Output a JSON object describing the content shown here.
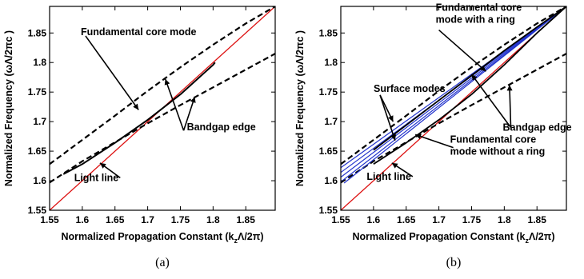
{
  "chart_data": [
    {
      "type": "line",
      "caption": "(a)",
      "xlabel": "Normalized Propagation Constant (k₂Λ/2π)",
      "xlabel_parts": [
        "Normalized Propagation Constant (k",
        "z",
        "Λ/2π)"
      ],
      "ylabel": "Normalized Frequency (ωΛ/2πc )",
      "xlim": [
        1.55,
        1.895
      ],
      "ylim": [
        1.55,
        1.895
      ],
      "xticks": [
        "1.55",
        "1.6",
        "1.65",
        "1.7",
        "1.75",
        "1.8",
        "1.85"
      ],
      "yticks": [
        "1.55",
        "1.6",
        "1.65",
        "1.7",
        "1.75",
        "1.8",
        "1.85"
      ],
      "grid": false,
      "series": [
        {
          "key": "light",
          "color": "#dd1111",
          "style": "solid",
          "width": 1.3,
          "x": [
            1.55,
            1.895
          ],
          "y": [
            1.55,
            1.895
          ]
        },
        {
          "key": "upper-edge",
          "color": "#000000",
          "style": "dashed",
          "width": 2.2,
          "x": [
            1.55,
            1.6,
            1.65,
            1.7,
            1.75,
            1.8,
            1.85,
            1.895
          ],
          "y": [
            1.628,
            1.669,
            1.71,
            1.752,
            1.792,
            1.83,
            1.866,
            1.895
          ]
        },
        {
          "key": "lower-edge",
          "color": "#000000",
          "style": "dashed",
          "width": 2.2,
          "x": [
            1.55,
            1.6,
            1.65,
            1.7,
            1.75,
            1.8,
            1.85,
            1.895
          ],
          "y": [
            1.597,
            1.633,
            1.665,
            1.697,
            1.728,
            1.758,
            1.788,
            1.815
          ]
        },
        {
          "key": "core-mode",
          "color": "#000000",
          "style": "solid",
          "width": 2.0,
          "x": [
            1.571,
            1.6,
            1.65,
            1.7,
            1.75,
            1.8,
            1.803
          ],
          "y": [
            1.611,
            1.628,
            1.664,
            1.703,
            1.746,
            1.796,
            1.8
          ]
        }
      ],
      "annotations": [
        {
          "text": "Fundamental core mode",
          "from": [
            1.605,
            1.845
          ],
          "to": [
            1.686,
            1.72
          ]
        },
        {
          "text": "Bandgap edge",
          "from": [
            1.755,
            1.685
          ],
          "to": [
            1.727,
            1.772
          ]
        },
        {
          "text": "Bandgap edge",
          "from": [
            1.755,
            1.685
          ],
          "to": [
            1.772,
            1.742
          ]
        },
        {
          "text": "Light line",
          "from": [
            1.658,
            1.605
          ],
          "to": [
            1.627,
            1.63
          ]
        }
      ]
    },
    {
      "type": "line",
      "caption": "(b)",
      "xlabel": "Normalized Propagation Constant (k₂Λ/2π)",
      "xlabel_parts": [
        "Normalized Propagation Constant (k",
        "z",
        "Λ/2π)"
      ],
      "ylabel": "Normalized Frequency (ωΛ/2πc )",
      "xlim": [
        1.55,
        1.895
      ],
      "ylim": [
        1.55,
        1.895
      ],
      "xticks": [
        "1.55",
        "1.6",
        "1.65",
        "1.7",
        "1.75",
        "1.8",
        "1.85"
      ],
      "yticks": [
        "1.55",
        "1.6",
        "1.65",
        "1.7",
        "1.75",
        "1.8",
        "1.85"
      ],
      "grid": false,
      "series": [
        {
          "key": "light",
          "color": "#dd1111",
          "style": "solid",
          "width": 1.3,
          "x": [
            1.55,
            1.895
          ],
          "y": [
            1.55,
            1.895
          ]
        },
        {
          "key": "upper-edge",
          "color": "#000000",
          "style": "dashed",
          "width": 2.2,
          "x": [
            1.55,
            1.6,
            1.65,
            1.7,
            1.75,
            1.8,
            1.85,
            1.895
          ],
          "y": [
            1.628,
            1.669,
            1.71,
            1.752,
            1.792,
            1.83,
            1.866,
            1.895
          ]
        },
        {
          "key": "lower-edge",
          "color": "#000000",
          "style": "dashed",
          "width": 2.2,
          "x": [
            1.55,
            1.6,
            1.65,
            1.7,
            1.75,
            1.8,
            1.85,
            1.895
          ],
          "y": [
            1.597,
            1.633,
            1.665,
            1.697,
            1.728,
            1.758,
            1.788,
            1.815
          ]
        },
        {
          "key": "surface-1",
          "color": "#2233cc",
          "style": "solid",
          "width": 1.2,
          "x": [
            1.55,
            1.895
          ],
          "y": [
            1.622,
            1.895
          ]
        },
        {
          "key": "surface-2",
          "color": "#2233cc",
          "style": "solid",
          "width": 1.2,
          "x": [
            1.55,
            1.895
          ],
          "y": [
            1.614,
            1.895
          ]
        },
        {
          "key": "surface-3",
          "color": "#2233cc",
          "style": "solid",
          "width": 1.2,
          "x": [
            1.55,
            1.895
          ],
          "y": [
            1.606,
            1.895
          ]
        },
        {
          "key": "surface-4",
          "color": "#2233cc",
          "style": "solid",
          "width": 1.2,
          "x": [
            1.55,
            1.895
          ],
          "y": [
            1.598,
            1.895
          ]
        },
        {
          "key": "surface-5",
          "color": "#2233cc",
          "style": "solid",
          "width": 1.2,
          "x": [
            1.555,
            1.895
          ],
          "y": [
            1.596,
            1.895
          ]
        },
        {
          "key": "core-ring",
          "color": "#000000",
          "style": "solid",
          "width": 1.8,
          "x": [
            1.6,
            1.65,
            1.7,
            1.75,
            1.8,
            1.85,
            1.895
          ],
          "y": [
            1.652,
            1.694,
            1.736,
            1.778,
            1.82,
            1.86,
            1.895
          ]
        },
        {
          "key": "core-noring",
          "color": "#000000",
          "style": "solid",
          "width": 1.8,
          "x": [
            1.6,
            1.65,
            1.7,
            1.75,
            1.8,
            1.85,
            1.895
          ],
          "y": [
            1.628,
            1.664,
            1.703,
            1.746,
            1.796,
            1.85,
            1.895
          ]
        }
      ],
      "annotations": [
        {
          "text": "Fundamental core",
          "text2": "mode with a ring",
          "from": [
            1.7,
            1.855
          ],
          "to": [
            1.772,
            1.785
          ]
        },
        {
          "text": "Surface modes",
          "from": [
            1.61,
            1.745
          ],
          "to": [
            1.63,
            1.7
          ]
        },
        {
          "text": "Surface modes",
          "from": [
            1.61,
            1.745
          ],
          "to": [
            1.633,
            1.668
          ]
        },
        {
          "text": "Bandgap edge",
          "from": [
            1.81,
            1.69
          ],
          "to": [
            1.75,
            1.78
          ]
        },
        {
          "text": "Bandgap edge",
          "from": [
            1.81,
            1.69
          ],
          "to": [
            1.808,
            1.762
          ]
        },
        {
          "text": "Fundamental core",
          "text2": "mode without a ring",
          "from": [
            1.722,
            1.656
          ],
          "to": [
            1.664,
            1.678
          ]
        },
        {
          "text": "Light line",
          "from": [
            1.66,
            1.607
          ],
          "to": [
            1.628,
            1.63
          ]
        }
      ]
    }
  ]
}
